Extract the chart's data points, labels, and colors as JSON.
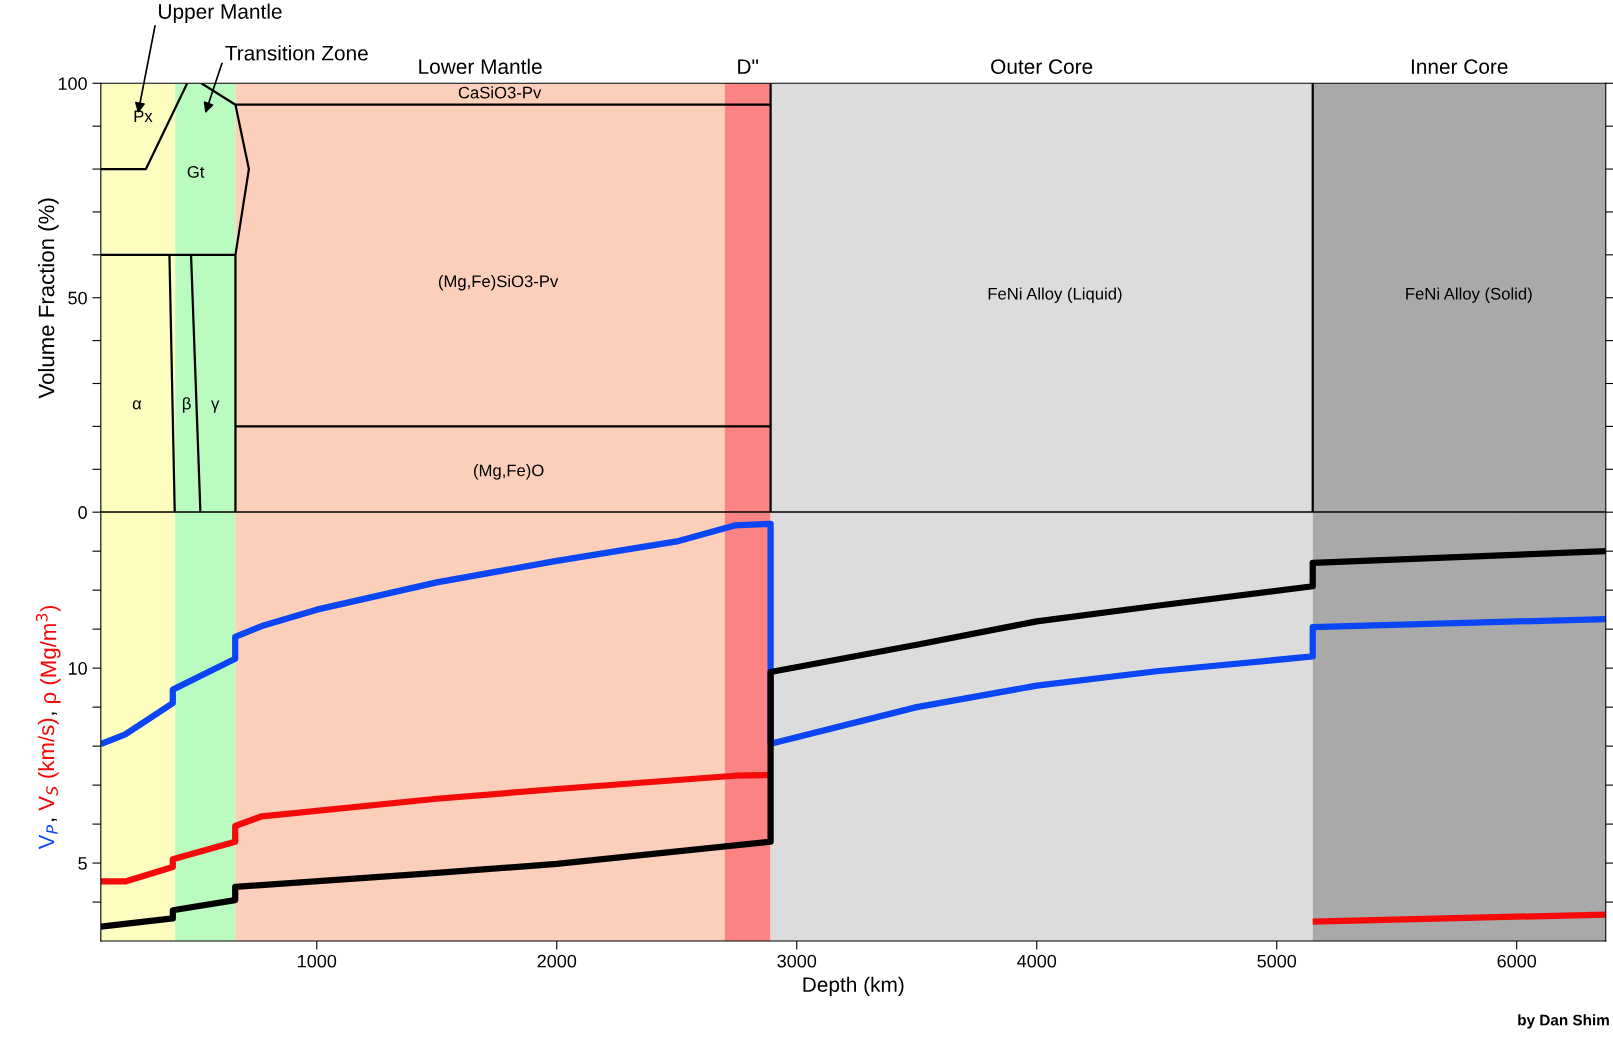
{
  "chart_data": [
    {
      "type": "line",
      "ylabel": "Volume Fraction (%)",
      "xlim": [
        100,
        6371
      ],
      "ylim": [
        0,
        100
      ],
      "xticks": [
        1000,
        2000,
        3000,
        4000,
        5000,
        6000
      ],
      "yticks": [
        0,
        {
          "value": 10,
          "label": null
        },
        {
          "value": 20,
          "label": null
        },
        {
          "value": 30,
          "label": null
        },
        {
          "value": 40,
          "label": null
        },
        50,
        {
          "value": 60,
          "label": null
        },
        {
          "value": 70,
          "label": null
        },
        {
          "value": 80,
          "label": null
        },
        {
          "value": 90,
          "label": null
        },
        100
      ],
      "tick_labels": "y",
      "series": [
        {
          "color": "#000000",
          "x": [
            100,
            288,
            460
          ],
          "values": [
            80,
            80,
            100
          ]
        },
        {
          "color": "#000000",
          "x": [
            519,
            661,
            717,
            661,
            661
          ],
          "values": [
            100,
            95,
            80,
            60,
            0
          ]
        },
        {
          "color": "#000000",
          "x": [
            100,
            661
          ],
          "values": [
            60,
            60
          ]
        },
        {
          "color": "#000000",
          "x": [
            386,
            408
          ],
          "values": [
            60,
            0
          ]
        },
        {
          "color": "#000000",
          "x": [
            476,
            515
          ],
          "values": [
            60,
            0
          ]
        },
        {
          "color": "#000000",
          "x": [
            661,
            2891
          ],
          "values": [
            95,
            95
          ]
        },
        {
          "color": "#000000",
          "x": [
            661,
            2891
          ],
          "values": [
            20,
            20
          ]
        },
        {
          "color": "#000000",
          "x": [
            2891,
            2891
          ],
          "values": [
            0,
            100
          ]
        },
        {
          "color": "#000000",
          "x": [
            5150,
            5150
          ],
          "values": [
            0,
            100
          ]
        }
      ],
      "bands": [
        {
          "axis": "x",
          "from": 100,
          "to": 410,
          "label": "Upper Mantle",
          "color": "#fdfdc0"
        },
        {
          "axis": "x",
          "from": 410,
          "to": 661,
          "label": "Transition Zone",
          "color": "#bafbc0"
        },
        {
          "axis": "x",
          "from": 661,
          "to": 2700,
          "label": "Lower Mantle",
          "color": "#fbcfb9"
        },
        {
          "axis": "x",
          "from": 2700,
          "to": 2891,
          "label": "D\"",
          "color": "#fb8383"
        },
        {
          "axis": "x",
          "from": 2891,
          "to": 5150,
          "label": "Outer Core",
          "color": "#dcdcdc"
        },
        {
          "axis": "x",
          "from": 5150,
          "to": 6371,
          "label": "Inner Core",
          "color": "#a9a9a9"
        }
      ],
      "annotations": [
        "Px",
        "Gt",
        "α",
        "β",
        "γ",
        "CaSiO3-Pv",
        "(Mg,Fe)SiO3-Pv",
        "(Mg,Fe)O",
        "FeNi Alloy (Liquid)",
        "FeNi Alloy (Solid)"
      ]
    },
    {
      "type": "line",
      "xlabel": "Depth (km)",
      "ylabel": "V$_{P}$, V$_{S}$ (km/s), ρ (Mg/m$^{3}$)",
      "xlim": [
        100,
        6371
      ],
      "ylim": [
        3,
        14
      ],
      "xticks": [
        1000,
        2000,
        3000,
        4000,
        5000,
        6000
      ],
      "yticks": [
        {
          "value": 4,
          "label": null
        },
        5,
        {
          "value": 6,
          "label": null
        },
        {
          "value": 7,
          "label": null
        },
        {
          "value": 8,
          "label": null
        },
        {
          "value": 9,
          "label": null
        },
        10,
        {
          "value": 11,
          "label": null
        },
        {
          "value": 12,
          "label": null
        },
        {
          "value": 13,
          "label": null
        }
      ],
      "series": [
        {
          "color": "#0a46f5",
          "x": [
            100,
            202,
            400,
            400,
            660,
            660,
            771,
            1000,
            1500,
            2000,
            2500,
            2741,
            2891,
            2891,
            3500,
            4000,
            4500,
            5150,
            5150,
            6371
          ],
          "values": [
            8.05,
            8.3,
            9.1,
            9.45,
            10.24,
            10.8,
            11.08,
            11.5,
            12.2,
            12.75,
            13.25,
            13.66,
            13.7,
            8.06,
            9.0,
            9.55,
            9.92,
            10.3,
            11.05,
            11.26
          ]
        },
        {
          "color": "#f50a0a",
          "x": [
            100,
            202,
            400,
            400,
            660,
            660,
            771,
            1500,
            2000,
            2741,
            2891
          ],
          "values": [
            4.53,
            4.53,
            4.9,
            5.1,
            5.55,
            5.95,
            6.2,
            6.65,
            6.9,
            7.24,
            7.26
          ]
        },
        {
          "color": "#f50a0a",
          "x": [
            5150,
            6371
          ],
          "values": [
            3.5,
            3.68
          ]
        },
        {
          "color": "#000000",
          "x": [
            100,
            400,
            400,
            660,
            660,
            1500,
            2000,
            2891,
            2891,
            3500,
            4000,
            4500,
            5150,
            5150,
            6371
          ],
          "values": [
            3.37,
            3.58,
            3.79,
            4.05,
            4.39,
            4.75,
            4.98,
            5.55,
            9.9,
            10.6,
            11.2,
            11.6,
            12.1,
            12.7,
            13.0
          ]
        }
      ],
      "bands": [
        {
          "axis": "x",
          "from": 100,
          "to": 410,
          "color": "#fdfdc0"
        },
        {
          "axis": "x",
          "from": 410,
          "to": 661,
          "color": "#bafbc0"
        },
        {
          "axis": "x",
          "from": 661,
          "to": 2700,
          "color": "#fbcfb9"
        },
        {
          "axis": "x",
          "from": 2700,
          "to": 2891,
          "color": "#fb8383"
        },
        {
          "axis": "x",
          "from": 2891,
          "to": 5150,
          "color": "#dcdcdc"
        },
        {
          "axis": "x",
          "from": 5150,
          "to": 6371,
          "color": "#a9a9a9"
        }
      ],
      "annotations": [
        "by Dan Shim"
      ]
    }
  ]
}
